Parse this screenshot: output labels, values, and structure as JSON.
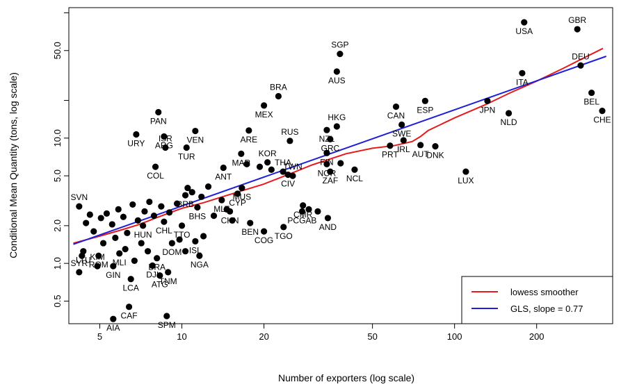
{
  "chart_data": {
    "type": "scatter",
    "xlabel": "Number of exporters (log scale)",
    "ylabel": "Conditional Mean Quantity (tons, log scale)",
    "x_scale": "log",
    "y_scale": "log",
    "xlim": [
      3.85,
      380
    ],
    "ylim": [
      0.33,
      110
    ],
    "x_ticks": [
      {
        "value": 5,
        "label": "5"
      },
      {
        "value": 10,
        "label": "10"
      },
      {
        "value": 20,
        "label": "20"
      },
      {
        "value": 50,
        "label": "50"
      },
      {
        "value": 100,
        "label": "100"
      },
      {
        "value": 200,
        "label": "200"
      }
    ],
    "y_ticks": [
      {
        "value": 0.5,
        "label": "0.5"
      },
      {
        "value": 1.0,
        "label": "1.0"
      },
      {
        "value": 2.0,
        "label": "2.0"
      },
      {
        "value": 5.0,
        "label": "5.0"
      },
      {
        "value": 10.0,
        "label": "10.0"
      },
      {
        "value": 50.0,
        "label": "50.0"
      }
    ],
    "y_minor_ticks": [
      20,
      100
    ],
    "grid": false,
    "legend": {
      "position": "bottom-right",
      "entries": [
        {
          "label": "lowess smoother",
          "color": "#e41a1c"
        },
        {
          "label": "GLS, slope =  0.77",
          "color": "#1f1fd6"
        }
      ]
    },
    "points": [
      {
        "label": "USA",
        "x": 180,
        "y": 84,
        "pos": "below"
      },
      {
        "label": "GBR",
        "x": 282,
        "y": 74,
        "pos": "above"
      },
      {
        "label": "DEU",
        "x": 290,
        "y": 38,
        "pos": "above"
      },
      {
        "label": "ITA",
        "x": 177,
        "y": 33,
        "pos": "below"
      },
      {
        "label": "BEL",
        "x": 318,
        "y": 23,
        "pos": "below"
      },
      {
        "label": "CHE",
        "x": 348,
        "y": 16.5,
        "pos": "below"
      },
      {
        "label": "JPN",
        "x": 132,
        "y": 19.8,
        "pos": "below"
      },
      {
        "label": "NLD",
        "x": 158,
        "y": 15.8,
        "pos": "below"
      },
      {
        "label": "ESP",
        "x": 78,
        "y": 19.8,
        "pos": "below"
      },
      {
        "label": "CAN",
        "x": 61,
        "y": 17.8,
        "pos": "below"
      },
      {
        "label": "SGP",
        "x": 38,
        "y": 47,
        "pos": "above"
      },
      {
        "label": "AUS",
        "x": 37,
        "y": 34,
        "pos": "below"
      },
      {
        "label": "BRA",
        "x": 22.6,
        "y": 21.6,
        "pos": "above"
      },
      {
        "label": "MEX",
        "x": 20,
        "y": 18.2,
        "pos": "below"
      },
      {
        "label": "HKG",
        "x": 37,
        "y": 12.4,
        "pos": "above"
      },
      {
        "label": "RUS",
        "x": 24.9,
        "y": 9.5,
        "pos": "above"
      },
      {
        "label": "NZL",
        "x": 34,
        "y": 11.6,
        "pos": "below"
      },
      {
        "label": "SWE",
        "x": 64,
        "y": 12.8,
        "pos": "below"
      },
      {
        "label": "ARE",
        "x": 17.6,
        "y": 11.5,
        "pos": "below"
      },
      {
        "label": "GRC",
        "x": 35,
        "y": 9.8,
        "pos": "below"
      },
      {
        "label": "IRL",
        "x": 65,
        "y": 9.6,
        "pos": "below"
      },
      {
        "label": "PRT",
        "x": 58,
        "y": 8.7,
        "pos": "below"
      },
      {
        "label": "AUT",
        "x": 75,
        "y": 8.8,
        "pos": "below"
      },
      {
        "label": "DNK",
        "x": 85,
        "y": 8.6,
        "pos": "below"
      },
      {
        "label": "FIN",
        "x": 34,
        "y": 7.6,
        "pos": "below"
      },
      {
        "label": "KOR",
        "x": 20.6,
        "y": 6.4,
        "pos": "above"
      },
      {
        "label": "NOR",
        "x": 34,
        "y": 6.2,
        "pos": "below"
      },
      {
        "label": "ZAF",
        "x": 35,
        "y": 5.4,
        "pos": "below"
      },
      {
        "label": "ARG",
        "x": 8.6,
        "y": 10.3,
        "pos": "below"
      },
      {
        "label": "VEN",
        "x": 11.2,
        "y": 11.4,
        "pos": "below"
      },
      {
        "label": "TUR",
        "x": 10.4,
        "y": 8.4,
        "pos": "below"
      },
      {
        "label": "ISR",
        "x": 8.7,
        "y": 8.4,
        "pos": "above"
      },
      {
        "label": "URY",
        "x": 6.8,
        "y": 10.7,
        "pos": "below"
      },
      {
        "label": "PAN",
        "x": 8.2,
        "y": 16.1,
        "pos": "below"
      },
      {
        "label": "COL",
        "x": 8.0,
        "y": 5.9,
        "pos": "below"
      },
      {
        "label": "MAR",
        "x": 16.5,
        "y": 7.5,
        "pos": "below"
      },
      {
        "label": "ANT",
        "x": 14.2,
        "y": 5.8,
        "pos": "below"
      },
      {
        "label": "TWN",
        "x": 25.5,
        "y": 5.0,
        "pos": "above"
      },
      {
        "label": "NCL",
        "x": 43,
        "y": 5.6,
        "pos": "below"
      },
      {
        "label": "CIV",
        "x": 24.5,
        "y": 5.1,
        "pos": "below"
      },
      {
        "label": "THA",
        "x": 23.5,
        "y": 5.4,
        "pos": "above"
      },
      {
        "label": "MUS",
        "x": 16.6,
        "y": 4.0,
        "pos": "below"
      },
      {
        "label": "LUX",
        "x": 110,
        "y": 5.4,
        "pos": "below"
      },
      {
        "label": "CYP",
        "x": 16.0,
        "y": 3.6,
        "pos": "below"
      },
      {
        "label": "MLT",
        "x": 14.0,
        "y": 3.2,
        "pos": "below"
      },
      {
        "label": "BHS",
        "x": 11.4,
        "y": 2.8,
        "pos": "below"
      },
      {
        "label": "CHN",
        "x": 15.0,
        "y": 2.6,
        "pos": "below"
      },
      {
        "label": "BEN",
        "x": 17.8,
        "y": 2.1,
        "pos": "below"
      },
      {
        "label": "COG",
        "x": 20.0,
        "y": 1.8,
        "pos": "below"
      },
      {
        "label": "TGO",
        "x": 23.6,
        "y": 1.95,
        "pos": "below"
      },
      {
        "label": "CMR",
        "x": 27.8,
        "y": 2.9,
        "pos": "below"
      },
      {
        "label": "PCGAB",
        "x": 27.6,
        "y": 2.6,
        "pos": "below"
      },
      {
        "label": "AND",
        "x": 34.3,
        "y": 2.3,
        "pos": "below"
      },
      {
        "label": "TTO",
        "x": 10.0,
        "y": 2.0,
        "pos": "below"
      },
      {
        "label": "ISL",
        "x": 11.2,
        "y": 1.5,
        "pos": "below"
      },
      {
        "label": "NGA",
        "x": 11.6,
        "y": 1.15,
        "pos": "below"
      },
      {
        "label": "DOM",
        "x": 9.2,
        "y": 1.45,
        "pos": "below"
      },
      {
        "label": "BRA",
        "x": 8.1,
        "y": 1.1,
        "pos": "below"
      },
      {
        "label": "TNM",
        "x": 8.9,
        "y": 0.85,
        "pos": "below"
      },
      {
        "label": "ATG",
        "x": 8.3,
        "y": 0.8,
        "pos": "below"
      },
      {
        "label": "DJI",
        "x": 7.8,
        "y": 0.96,
        "pos": "below"
      },
      {
        "label": "LCA",
        "x": 6.5,
        "y": 0.75,
        "pos": "below"
      },
      {
        "label": "CAF",
        "x": 6.4,
        "y": 0.45,
        "pos": "below"
      },
      {
        "label": "SPM",
        "x": 8.8,
        "y": 0.38,
        "pos": "below"
      },
      {
        "label": "AIA",
        "x": 5.6,
        "y": 0.36,
        "pos": "below"
      },
      {
        "label": "SVN",
        "x": 4.2,
        "y": 2.85,
        "pos": "above"
      },
      {
        "label": "SYR",
        "x": 4.2,
        "y": 0.85,
        "pos": "above"
      },
      {
        "label": "GIN",
        "x": 5.6,
        "y": 0.95,
        "pos": "below"
      },
      {
        "label": "KIM",
        "x": 4.9,
        "y": 0.95,
        "pos": "above"
      },
      {
        "label": "LTU",
        "x": 4.35,
        "y": 1.25,
        "pos": "below"
      },
      {
        "label": "ROM",
        "x": 4.95,
        "y": 1.15,
        "pos": "below"
      },
      {
        "label": "MLI",
        "x": 5.9,
        "y": 1.2,
        "pos": "below"
      },
      {
        "label": "HUN",
        "x": 7.2,
        "y": 2.0,
        "pos": "below"
      },
      {
        "label": "CHL",
        "x": 8.6,
        "y": 2.15,
        "pos": "below"
      },
      {
        "label": "BRB",
        "x": 10.3,
        "y": 3.5,
        "pos": "below"
      },
      {
        "label": "",
        "x": 4.6,
        "y": 2.45,
        "pos": "none"
      },
      {
        "label": "",
        "x": 4.45,
        "y": 2.1,
        "pos": "none"
      },
      {
        "label": "",
        "x": 4.75,
        "y": 1.8,
        "pos": "none"
      },
      {
        "label": "",
        "x": 5.05,
        "y": 2.3,
        "pos": "none"
      },
      {
        "label": "",
        "x": 5.3,
        "y": 2.5,
        "pos": "none"
      },
      {
        "label": "",
        "x": 5.55,
        "y": 2.05,
        "pos": "none"
      },
      {
        "label": "",
        "x": 5.85,
        "y": 2.7,
        "pos": "none"
      },
      {
        "label": "",
        "x": 6.1,
        "y": 2.35,
        "pos": "none"
      },
      {
        "label": "",
        "x": 6.3,
        "y": 1.75,
        "pos": "none"
      },
      {
        "label": "",
        "x": 6.6,
        "y": 2.95,
        "pos": "none"
      },
      {
        "label": "",
        "x": 6.9,
        "y": 2.2,
        "pos": "none"
      },
      {
        "label": "",
        "x": 7.3,
        "y": 2.6,
        "pos": "none"
      },
      {
        "label": "",
        "x": 7.6,
        "y": 3.1,
        "pos": "none"
      },
      {
        "label": "",
        "x": 7.9,
        "y": 2.4,
        "pos": "none"
      },
      {
        "label": "",
        "x": 8.4,
        "y": 2.85,
        "pos": "none"
      },
      {
        "label": "",
        "x": 9.0,
        "y": 2.55,
        "pos": "none"
      },
      {
        "label": "",
        "x": 9.6,
        "y": 3.0,
        "pos": "none"
      },
      {
        "label": "",
        "x": 10.5,
        "y": 4.0,
        "pos": "none"
      },
      {
        "label": "",
        "x": 10.9,
        "y": 3.7,
        "pos": "none"
      },
      {
        "label": "",
        "x": 11.8,
        "y": 3.4,
        "pos": "none"
      },
      {
        "label": "",
        "x": 12.5,
        "y": 4.1,
        "pos": "none"
      },
      {
        "label": "",
        "x": 13.1,
        "y": 2.4,
        "pos": "none"
      },
      {
        "label": "",
        "x": 14.6,
        "y": 2.7,
        "pos": "none"
      },
      {
        "label": "",
        "x": 15.3,
        "y": 2.2,
        "pos": "none"
      },
      {
        "label": "",
        "x": 17.3,
        "y": 6.2,
        "pos": "none"
      },
      {
        "label": "",
        "x": 19.3,
        "y": 5.9,
        "pos": "none"
      },
      {
        "label": "",
        "x": 21.3,
        "y": 5.6,
        "pos": "none"
      },
      {
        "label": "",
        "x": 29.2,
        "y": 2.7,
        "pos": "none"
      },
      {
        "label": "",
        "x": 31.5,
        "y": 2.6,
        "pos": "none"
      },
      {
        "label": "",
        "x": 38.2,
        "y": 6.3,
        "pos": "none"
      },
      {
        "label": "",
        "x": 4.3,
        "y": 1.15,
        "pos": "none"
      },
      {
        "label": "",
        "x": 5.15,
        "y": 1.45,
        "pos": "none"
      },
      {
        "label": "",
        "x": 5.7,
        "y": 1.6,
        "pos": "none"
      },
      {
        "label": "",
        "x": 6.2,
        "y": 1.3,
        "pos": "none"
      },
      {
        "label": "",
        "x": 6.7,
        "y": 1.05,
        "pos": "none"
      },
      {
        "label": "",
        "x": 7.1,
        "y": 1.45,
        "pos": "none"
      },
      {
        "label": "",
        "x": 7.5,
        "y": 1.25,
        "pos": "none"
      },
      {
        "label": "",
        "x": 9.8,
        "y": 1.55,
        "pos": "none"
      },
      {
        "label": "",
        "x": 10.3,
        "y": 1.25,
        "pos": "none"
      },
      {
        "label": "",
        "x": 12.0,
        "y": 1.65,
        "pos": "none"
      }
    ],
    "series": [
      {
        "name": "lowess smoother",
        "color": "#e41a1c",
        "x": [
          4,
          5,
          6,
          7,
          8,
          10,
          12,
          15,
          20,
          25,
          30,
          40,
          50,
          60,
          70,
          75,
          80,
          100,
          130,
          160,
          200,
          250,
          300,
          350
        ],
        "y": [
          1.45,
          1.65,
          1.85,
          2.05,
          2.3,
          2.75,
          3.05,
          3.55,
          4.3,
          5.2,
          6.1,
          7.5,
          8.3,
          8.7,
          9.4,
          10.3,
          11.5,
          14.5,
          18.5,
          23,
          28.5,
          36,
          44,
          52
        ]
      },
      {
        "name": "GLS, slope =  0.77",
        "color": "#1f1fd6",
        "x": [
          4,
          360
        ],
        "y": [
          1.42,
          45
        ]
      }
    ]
  }
}
